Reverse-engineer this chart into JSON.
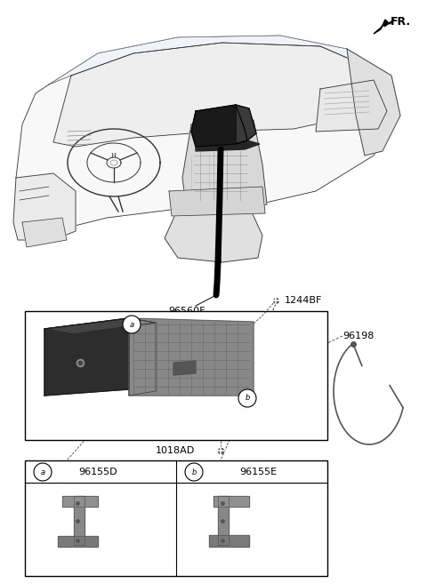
{
  "bg_color": "#ffffff",
  "fr_label": "FR.",
  "label_96560F": "96560F",
  "label_1244BF": "1244BF",
  "label_96198": "96198",
  "label_1018AD": "1018AD",
  "label_96155D": "96155D",
  "label_96155E": "96155E",
  "fig_w": 4.8,
  "fig_h": 6.57,
  "dpi": 100
}
